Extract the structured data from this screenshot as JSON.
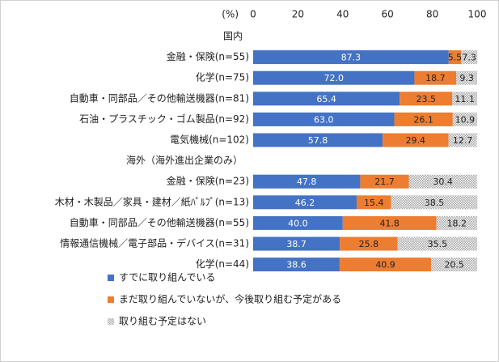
{
  "chart_data": {
    "type": "stacked-bar-horizontal",
    "axis_label": "(%)",
    "categories": [
      "国内",
      "金融・保険(n=55)",
      "化学(n=75)",
      "自動車・同部品／その他輸送機器(n=81)",
      "石油・プラスチック・ゴム製品(n=92)",
      "電気機械(n=102)",
      "海外（海外進出企業のみ）",
      "金融・保険(n=23)",
      "木材・木製品／家具・建材／紙ﾊﾟﾙﾌﾟ(n=13)",
      "自動車・同部品／その他輸送機器(n=55)",
      "情報通信機械／電子部品・デバイス(n=31)",
      "化学(n=44)"
    ],
    "series": [
      {
        "name": "すでに取り組んでいる",
        "color": "#4472c4",
        "values": [
          null,
          87.3,
          72.0,
          65.4,
          63.0,
          57.8,
          null,
          47.8,
          46.2,
          40.0,
          38.7,
          38.6
        ],
        "value_labels": [
          null,
          "87.3",
          "72.0",
          "65.4",
          "63.0",
          "57.8",
          null,
          "47.8",
          "46.2",
          "40.0",
          "38.7",
          "38.6"
        ]
      },
      {
        "name": "まだ取り組んでいないが、今後取り組む予定がある",
        "color": "#ed7d31",
        "values": [
          null,
          5.5,
          18.7,
          23.5,
          26.1,
          29.4,
          null,
          21.7,
          15.4,
          41.8,
          25.8,
          40.9
        ],
        "value_labels": [
          null,
          "5.5",
          "18.7",
          "23.5",
          "26.1",
          "29.4",
          null,
          "21.7",
          "15.4",
          "41.8",
          "25.8",
          "40.9"
        ]
      },
      {
        "name": "取り組む予定はない",
        "color": "#a5a5a5",
        "values": [
          null,
          7.3,
          9.3,
          11.1,
          10.9,
          12.7,
          null,
          30.4,
          38.5,
          18.2,
          35.5,
          20.5
        ],
        "value_labels": [
          null,
          "7.3",
          "9.3",
          "11.1",
          "10.9",
          "12.7",
          null,
          "30.4",
          "38.5",
          "18.2",
          "35.5",
          "20.5"
        ]
      }
    ],
    "xlim": [
      0,
      100
    ],
    "xticks": [
      0,
      20,
      40,
      60,
      80,
      100
    ]
  }
}
